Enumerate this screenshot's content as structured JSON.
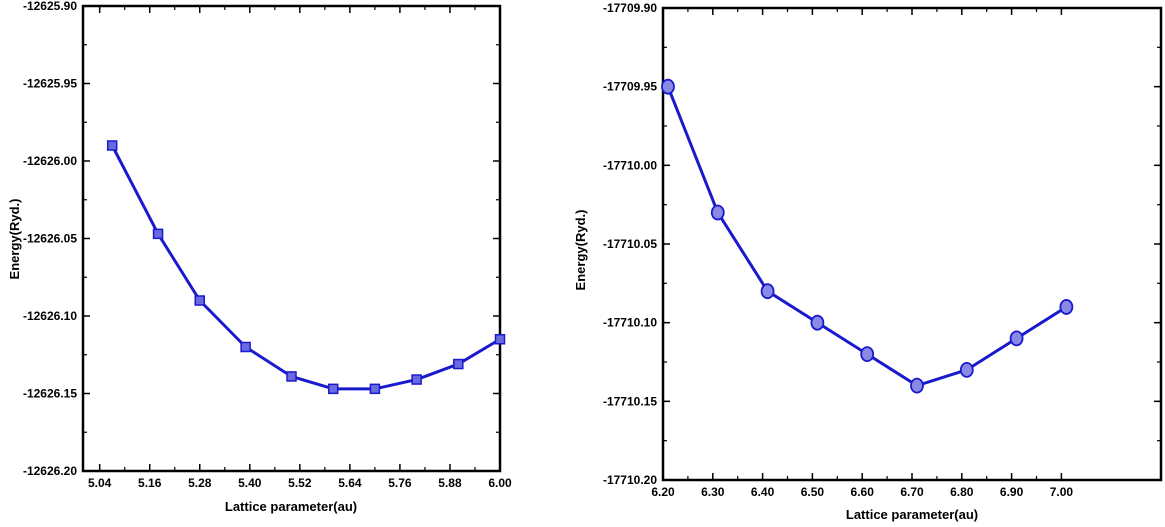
{
  "chart_data": [
    {
      "type": "line",
      "xlabel": "Lattice parameter(au)",
      "ylabel": "Energy(Ryd.)",
      "xlim": [
        5.0,
        6.0
      ],
      "ylim": [
        -12626.2,
        -12625.9
      ],
      "x_ticks": [
        "5.04",
        "5.16",
        "5.28",
        "5.40",
        "5.52",
        "5.64",
        "5.76",
        "5.88",
        "6.00"
      ],
      "y_ticks": [
        "-12625.90",
        "-12625.95",
        "-12626.00",
        "-12626.05",
        "-12626.10",
        "-12626.15",
        "-12626.20"
      ],
      "marker": "square",
      "line_color": "#1a1acd",
      "grid": false,
      "series": [
        {
          "x": [
            5.07,
            5.18,
            5.28,
            5.39,
            5.5,
            5.6,
            5.7,
            5.8,
            5.9,
            6.0
          ],
          "y": [
            -12625.99,
            -12626.047,
            -12626.09,
            -12626.12,
            -12626.139,
            -12626.147,
            -12626.147,
            -12626.141,
            -12626.131,
            -12626.115
          ]
        }
      ]
    },
    {
      "type": "line",
      "xlabel": "Lattice parameter(au)",
      "ylabel": "Energy(Ryd.)",
      "xlim": [
        6.2,
        7.2
      ],
      "ylim": [
        -17710.2,
        -17709.9
      ],
      "x_ticks": [
        "6.20",
        "6.30",
        "6.40",
        "6.50",
        "6.60",
        "6.70",
        "6.80",
        "6.90",
        "7.00"
      ],
      "y_ticks": [
        "-17709.90",
        "-17709.95",
        "-17710.00",
        "-17710.05",
        "-17710.10",
        "-17710.15",
        "-17710.20"
      ],
      "marker": "circle",
      "line_color": "#1a1acd",
      "grid": false,
      "series": [
        {
          "x": [
            6.21,
            6.31,
            6.41,
            6.51,
            6.61,
            6.71,
            6.81,
            6.91,
            7.01
          ],
          "y": [
            -17709.95,
            -17710.03,
            -17710.08,
            -17710.1,
            -17710.12,
            -17710.14,
            -17710.13,
            -17710.11,
            -17710.09
          ]
        }
      ]
    }
  ]
}
